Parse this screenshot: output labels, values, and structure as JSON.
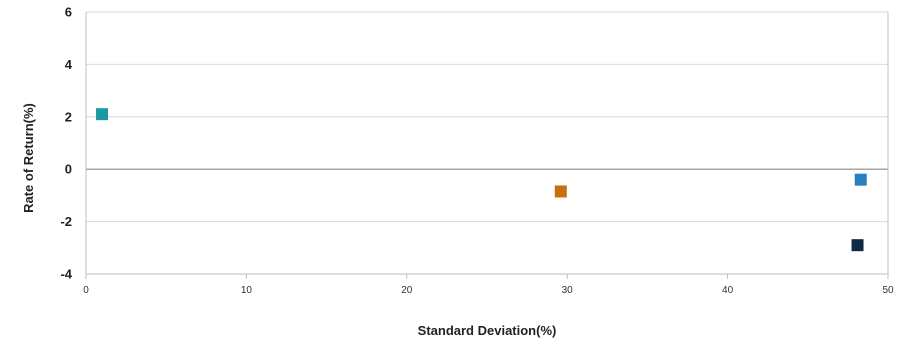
{
  "chart_data": {
    "type": "scatter",
    "title": "",
    "xlabel": "Standard Deviation(%)",
    "ylabel": "Rate of Return(%)",
    "xlim": [
      0,
      50
    ],
    "ylim": [
      -4,
      6
    ],
    "xticks": [
      "0",
      "10",
      "20",
      "30",
      "40",
      "50"
    ],
    "yticks": [
      "6",
      "4",
      "2",
      "0",
      "-2",
      "-4"
    ],
    "grid": "horizontal",
    "legend": "none",
    "series": [
      {
        "color": "#1a9aa0",
        "x": [
          1.0
        ],
        "y": [
          2.1
        ]
      },
      {
        "color": "#c8700e",
        "x": [
          29.6
        ],
        "y": [
          -0.85
        ]
      },
      {
        "color": "#2a7fc1",
        "x": [
          48.3
        ],
        "y": [
          -0.4
        ]
      },
      {
        "color": "#0d2b45",
        "x": [
          48.1
        ],
        "y": [
          -2.9
        ]
      }
    ]
  }
}
